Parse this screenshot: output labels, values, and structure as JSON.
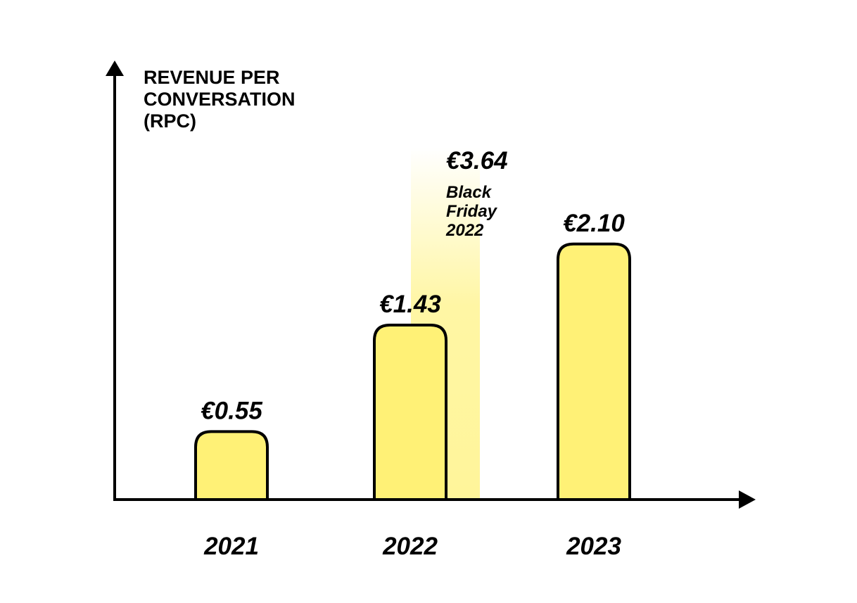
{
  "chart_data": {
    "type": "bar",
    "ylabel": [
      "REVENUE PER",
      "CONVERSATION",
      "(RPC)"
    ],
    "categories": [
      "2021",
      "2022",
      "2023"
    ],
    "values": [
      0.55,
      1.43,
      2.1
    ],
    "value_labels": [
      "€0.55",
      "€1.43",
      "€2.10"
    ],
    "highlight": {
      "category": "2022",
      "value": 3.64,
      "value_label": "€3.64",
      "annotation": [
        "Black",
        "Friday",
        "2022"
      ]
    },
    "grid": false,
    "colors": {
      "bar": "#fff176",
      "outline": "#000000",
      "highlight": "#fff59a"
    }
  }
}
